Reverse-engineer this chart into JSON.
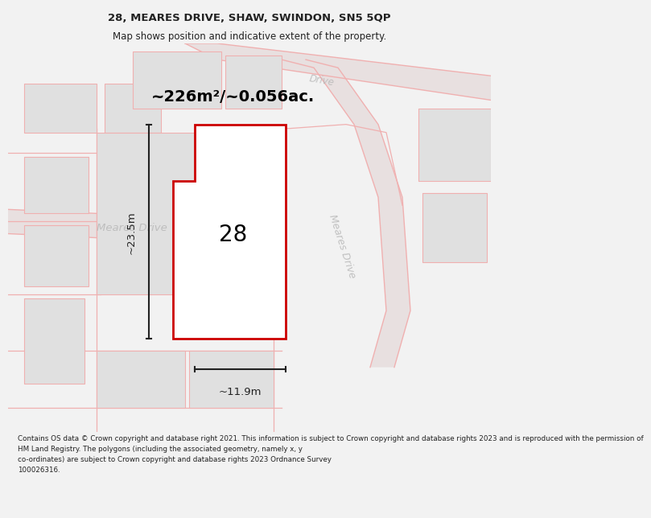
{
  "title": "28, MEARES DRIVE, SHAW, SWINDON, SN5 5QP",
  "subtitle": "Map shows position and indicative extent of the property.",
  "area_label": "~226m²/~0.056ac.",
  "width_label": "~11.9m",
  "height_label": "~23.5m",
  "number_label": "28",
  "footer_text": "Contains OS data © Crown copyright and database right 2021. This information is subject to Crown copyright and database rights 2023 and is reproduced with the permission of\nHM Land Registry. The polygons (including the associated geometry, namely x, y\nco-ordinates) are subject to Crown copyright and database rights 2023 Ordnance Survey\n100026316.",
  "bg_color": "#f2f2f2",
  "map_bg": "#f2f2f2",
  "block_fill": "#e0e0e0",
  "block_edge": "#f0b0b0",
  "road_fill": "#e8e0e0",
  "road_edge": "#f0b0b0",
  "plot_fill": "#ffffff",
  "plot_edge": "#cc0000",
  "road_label_color": "#b8b8b8",
  "dim_color": "#222222",
  "title_color": "#222222",
  "footer_color": "#222222",
  "title_fontsize": 9.5,
  "subtitle_fontsize": 8.5,
  "area_fontsize": 14,
  "number_fontsize": 20,
  "dim_fontsize": 9.5,
  "footer_fontsize": 6.3
}
